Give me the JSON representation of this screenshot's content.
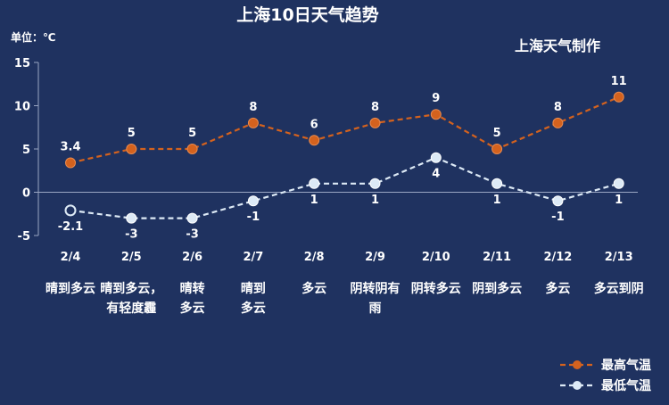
{
  "chart_data": {
    "type": "line",
    "title": "上海10日天气趋势",
    "credit": "上海天气制作",
    "unit_label": "单位：℃",
    "categories": [
      "2/4",
      "2/5",
      "2/6",
      "2/7",
      "2/8",
      "2/9",
      "2/10",
      "2/11",
      "2/12",
      "2/13"
    ],
    "weather": [
      [
        "晴到多云"
      ],
      [
        "晴到多云，",
        "有轻度霾"
      ],
      [
        "晴转",
        "多云"
      ],
      [
        "晴到",
        "多云"
      ],
      [
        "多云"
      ],
      [
        "阴转阴有",
        "雨"
      ],
      [
        "阴转多云"
      ],
      [
        "阴到多云"
      ],
      [
        "多云"
      ],
      [
        "多云到阴"
      ]
    ],
    "ylim": [
      -5,
      15
    ],
    "yticks": [
      -5,
      0,
      5,
      10,
      15
    ],
    "grid": false,
    "legend_position": "bottom-right",
    "series": [
      {
        "name": "最高气温",
        "values": [
          3.4,
          5,
          5,
          8,
          6,
          8,
          9,
          5,
          8,
          11
        ],
        "labels": [
          "3.4",
          "5",
          "5",
          "8",
          "6",
          "8",
          "9",
          "5",
          "8",
          "11"
        ],
        "color": "#d4621e",
        "label_position": "above"
      },
      {
        "name": "最低气温",
        "values": [
          -2.1,
          -3,
          -3,
          -1,
          1,
          1,
          4,
          1,
          -1,
          1
        ],
        "labels": [
          "-2.1",
          "-3",
          "-3",
          "-1",
          "1",
          "1",
          "4",
          "1",
          "-1",
          "1"
        ],
        "color": "#ddeaf6",
        "label_position": "below"
      }
    ]
  }
}
